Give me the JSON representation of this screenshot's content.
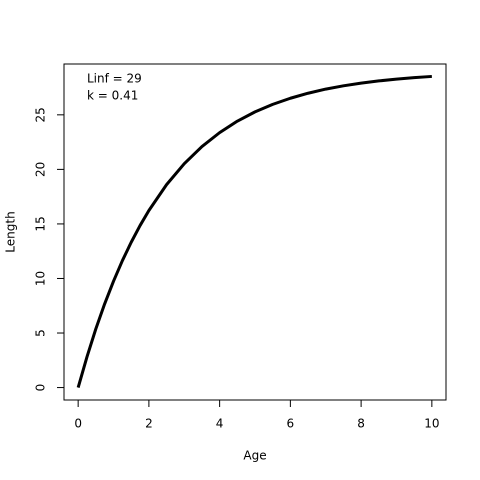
{
  "chart_data": {
    "type": "line",
    "xlabel": "Age",
    "ylabel": "Length",
    "annotations": [
      "Linf = 29",
      "k = 0.41"
    ],
    "x": [
      0,
      0.25,
      0.5,
      0.75,
      1,
      1.25,
      1.5,
      1.75,
      2,
      2.5,
      3,
      3.5,
      4,
      4.5,
      5,
      5.5,
      6,
      6.5,
      7,
      7.5,
      8,
      8.5,
      9,
      9.5,
      10
    ],
    "series": [
      {
        "color": "#000000",
        "values": [
          0,
          2.82,
          5.38,
          7.68,
          9.75,
          11.63,
          13.32,
          14.85,
          16.23,
          18.6,
          20.52,
          22.09,
          23.37,
          24.42,
          25.27,
          25.96,
          26.52,
          26.98,
          27.36,
          27.66,
          27.91,
          28.11,
          28.27,
          28.41,
          28.52
        ]
      }
    ],
    "xlim": [
      -0.4,
      10.4
    ],
    "ylim": [
      -1.14,
      29.66
    ],
    "xticks": [
      0,
      2,
      4,
      6,
      8,
      10
    ],
    "yticks": [
      0,
      5,
      10,
      15,
      20,
      25
    ],
    "grid": false
  }
}
